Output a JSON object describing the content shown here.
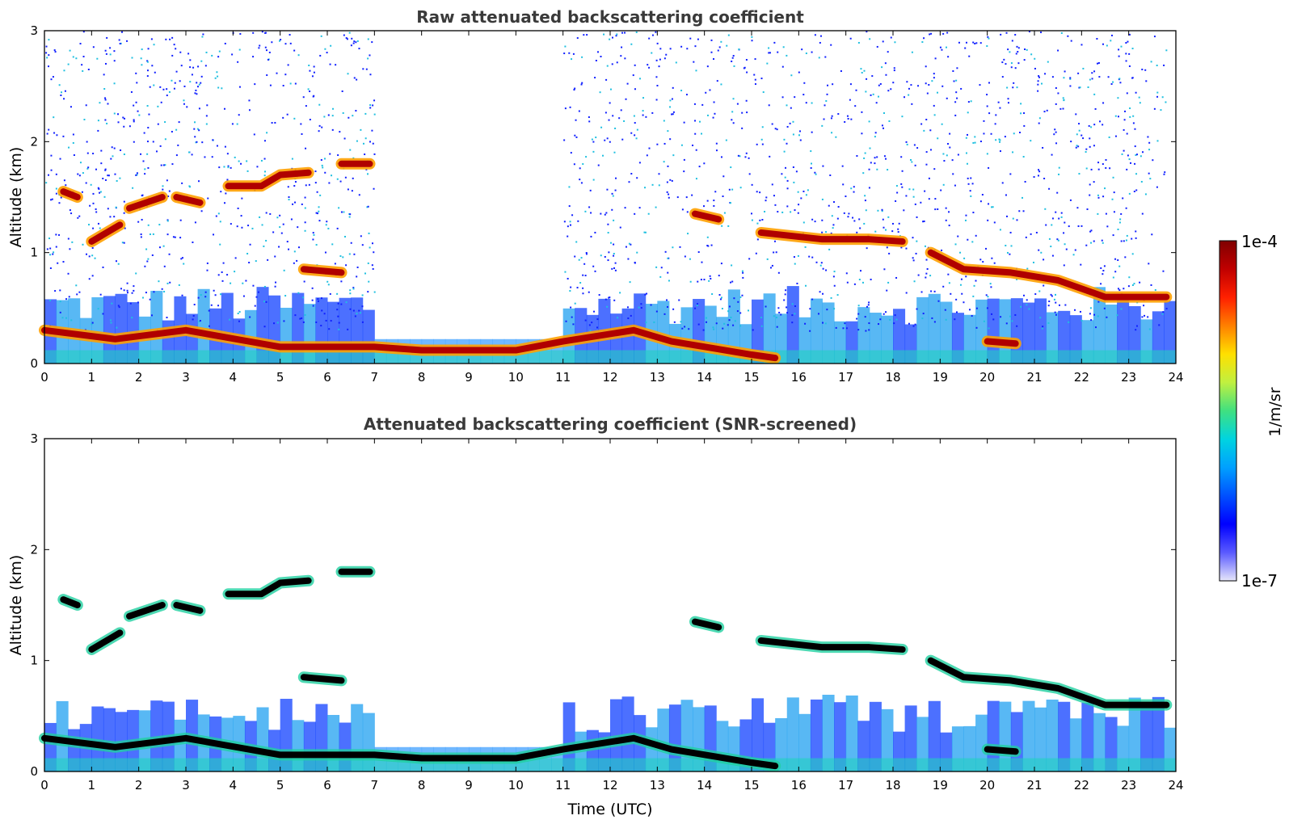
{
  "chart_data": [
    {
      "type": "heatmap",
      "title": "Raw attenuated backscattering coefficient",
      "xlabel": "",
      "ylabel": "Altitude (km)",
      "xlim": [
        0,
        24
      ],
      "ylim": [
        0,
        3
      ],
      "x_ticks": [
        "0",
        "1",
        "2",
        "3",
        "4",
        "5",
        "6",
        "7",
        "8",
        "9",
        "10",
        "11",
        "12",
        "13",
        "14",
        "15",
        "16",
        "17",
        "18",
        "19",
        "20",
        "21",
        "22",
        "23",
        "24"
      ],
      "y_ticks": [
        "0",
        "1",
        "2",
        "3"
      ],
      "no_data_time_ranges_utc": [
        [
          7.0,
          11.0
        ]
      ],
      "layers": [
        {
          "label": "cloud layer",
          "points": [
            [
              0.4,
              1.55
            ],
            [
              0.7,
              1.5
            ]
          ]
        },
        {
          "label": "cloud layer",
          "points": [
            [
              1.0,
              1.1
            ],
            [
              1.6,
              1.25
            ]
          ]
        },
        {
          "label": "cloud layer",
          "points": [
            [
              1.8,
              1.4
            ],
            [
              2.5,
              1.5
            ]
          ]
        },
        {
          "label": "cloud layer",
          "points": [
            [
              2.8,
              1.5
            ],
            [
              3.3,
              1.45
            ]
          ]
        },
        {
          "label": "cloud layer",
          "points": [
            [
              3.9,
              1.6
            ],
            [
              4.6,
              1.6
            ],
            [
              5.0,
              1.7
            ],
            [
              5.6,
              1.72
            ]
          ]
        },
        {
          "label": "cloud layer",
          "points": [
            [
              6.3,
              1.8
            ],
            [
              6.9,
              1.8
            ]
          ]
        },
        {
          "label": "cloud layer",
          "points": [
            [
              5.5,
              0.85
            ],
            [
              6.3,
              0.82
            ]
          ]
        },
        {
          "label": "cloud layer",
          "points": [
            [
              13.8,
              1.35
            ],
            [
              14.3,
              1.3
            ]
          ]
        },
        {
          "label": "cloud layer",
          "points": [
            [
              15.2,
              1.18
            ],
            [
              16.5,
              1.12
            ],
            [
              17.5,
              1.12
            ],
            [
              18.2,
              1.1
            ]
          ]
        },
        {
          "label": "cloud layer",
          "points": [
            [
              18.8,
              1.0
            ],
            [
              19.5,
              0.85
            ],
            [
              20.5,
              0.82
            ],
            [
              21.5,
              0.75
            ],
            [
              22.5,
              0.6
            ],
            [
              23.8,
              0.6
            ]
          ]
        },
        {
          "label": "boundary layer top",
          "points": [
            [
              0,
              0.3
            ],
            [
              1.5,
              0.22
            ],
            [
              3.0,
              0.3
            ],
            [
              5.0,
              0.15
            ],
            [
              7.0,
              0.15
            ],
            [
              8.0,
              0.12
            ],
            [
              10.0,
              0.12
            ],
            [
              11.0,
              0.2
            ],
            [
              12.5,
              0.3
            ],
            [
              13.3,
              0.2
            ],
            [
              15.0,
              0.08
            ],
            [
              15.5,
              0.05
            ]
          ]
        },
        {
          "label": "boundary layer top",
          "points": [
            [
              20.0,
              0.2
            ],
            [
              20.6,
              0.18
            ]
          ]
        }
      ]
    },
    {
      "type": "heatmap",
      "title": "Attenuated backscattering coefficient (SNR-screened)",
      "xlabel": "Time (UTC)",
      "ylabel": "Altitude (km)",
      "xlim": [
        0,
        24
      ],
      "ylim": [
        0,
        3
      ],
      "x_ticks": [
        "0",
        "1",
        "2",
        "3",
        "4",
        "5",
        "6",
        "7",
        "8",
        "9",
        "10",
        "11",
        "12",
        "13",
        "14",
        "15",
        "16",
        "17",
        "18",
        "19",
        "20",
        "21",
        "22",
        "23",
        "24"
      ],
      "y_ticks": [
        "0",
        "1",
        "2",
        "3"
      ]
    }
  ],
  "colorbar": {
    "label": "1/m/sr",
    "min_label": "1e-7",
    "max_label": "1e-4",
    "colors": [
      "#e6e6fa",
      "#5a5aff",
      "#0000ff",
      "#0050ff",
      "#00a0ff",
      "#00d4e0",
      "#40e080",
      "#c0f040",
      "#ffe000",
      "#ff8000",
      "#ff2000",
      "#c00000",
      "#800000"
    ]
  }
}
